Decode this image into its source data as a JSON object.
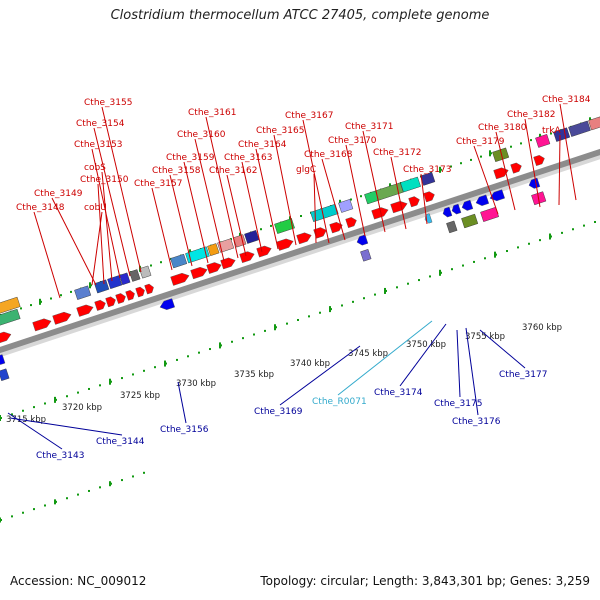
{
  "title": "Clostridium thermocellum ATCC 27405, complete genome",
  "footer": {
    "accession": "Accession: NC_009012",
    "summary": "Topology: circular; Length: 3,843,301 bp; Genes: 3,259"
  },
  "colors": {
    "backbone": "#8c8c8c",
    "forward_gene": "#ff0000",
    "reverse_gene": "#0000ee",
    "label_forward": "#cc0000",
    "label_reverse": "#000099",
    "label_rna": "#33aacc",
    "tick": "#119911"
  },
  "scale_labels": [
    "3715 kbp",
    "3720 kbp",
    "3725 kbp",
    "3730 kbp",
    "3735 kbp",
    "3740 kbp",
    "3745 kbp",
    "3750 kbp",
    "3755 kbp",
    "3760 kbp"
  ],
  "top_labels": [
    "Cthe_3155",
    "Cthe_3154",
    "Cthe_3153",
    "cobS",
    "Cthe_3150",
    "Cthe_3149",
    "Cthe_3148",
    "cobU",
    "Cthe_3161",
    "Cthe_3160",
    "Cthe_3159",
    "Cthe_3158",
    "Cthe_3157",
    "Cthe_3163",
    "Cthe_3162",
    "Cthe_3164",
    "Cthe_3165",
    "Cthe_3167",
    "Cthe_3168",
    "glgC",
    "Cthe_3171",
    "Cthe_3170",
    "Cthe_3172",
    "Cthe_3173",
    "Cthe_3179",
    "Cthe_3180",
    "Cthe_3182",
    "trkA",
    "Cthe_3184"
  ],
  "bottom_labels": [
    "Cthe_3143",
    "Cthe_3144",
    "Cthe_3156",
    "Cthe_3169",
    "Cthe_R0071",
    "Cthe_3174",
    "Cthe_3175",
    "Cthe_3176",
    "Cthe_3177"
  ]
}
